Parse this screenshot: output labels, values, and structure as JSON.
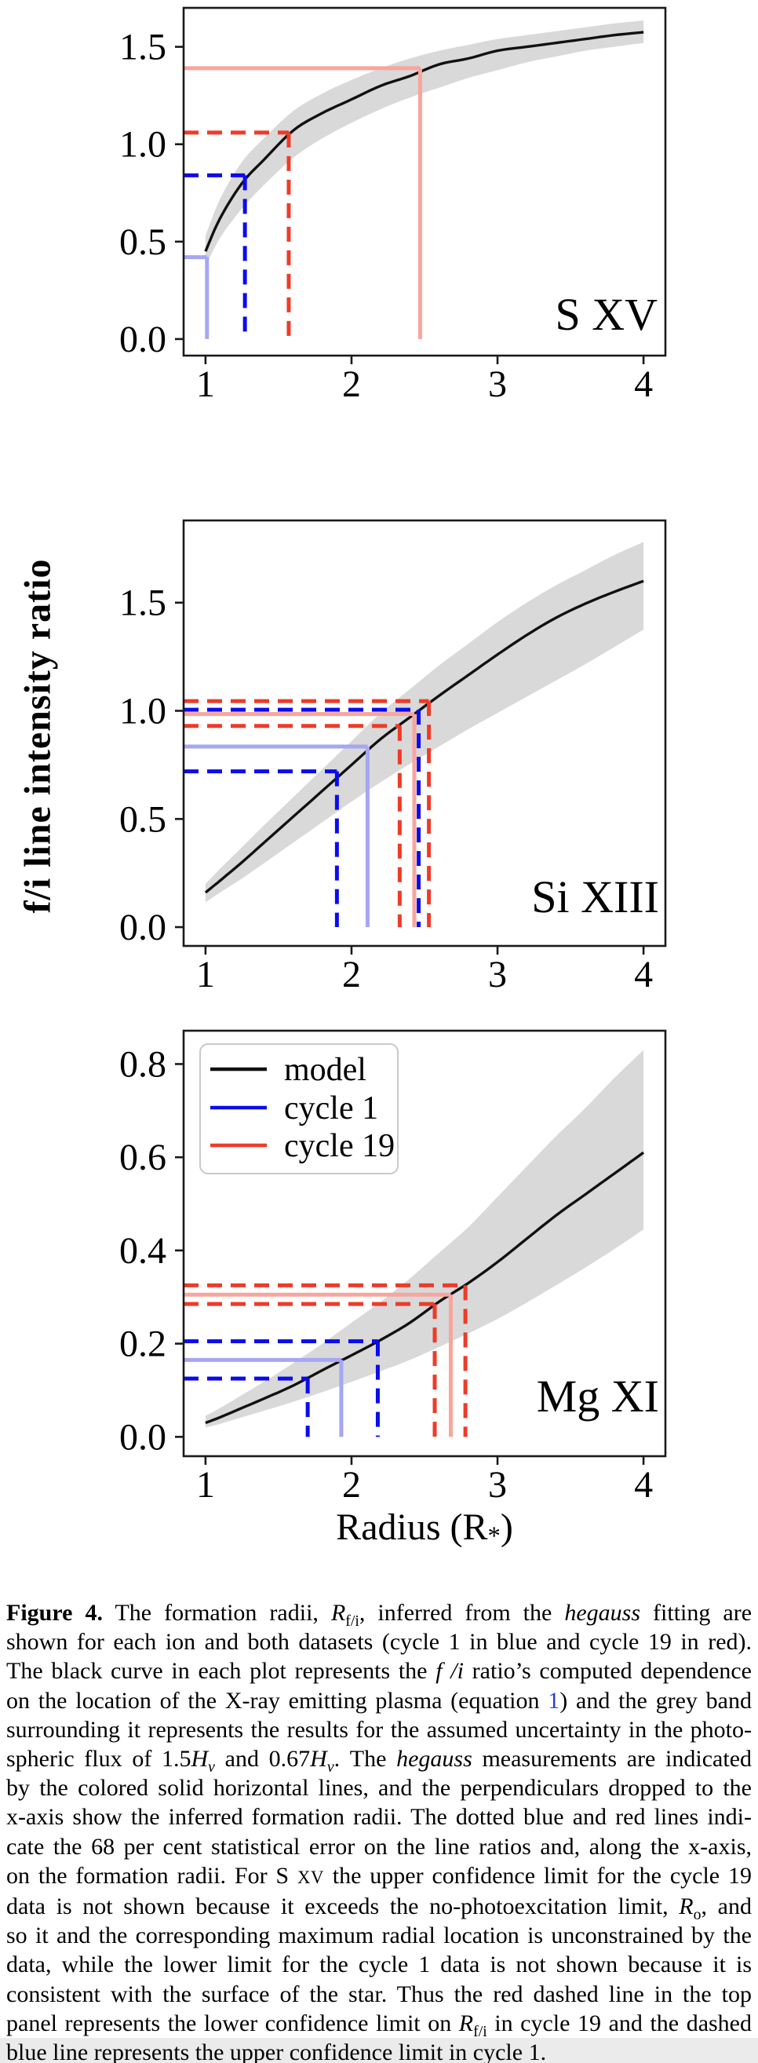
{
  "figure": {
    "y_axis_label": "f/i line intensity ratio",
    "x_axis_label": {
      "prefix": "Radius (R",
      "sub": "*",
      "suffix": ")"
    },
    "xlim": [
      0.85,
      4.15
    ],
    "x_ticks": [
      1,
      2,
      3,
      4
    ],
    "x_tick_labels": [
      "1",
      "2",
      "3",
      "4"
    ],
    "colors": {
      "model": "#111111",
      "band": "#d9d9d9",
      "cycle1_solid": "#a6a6f2",
      "cycle1_dashed": "#0b0bee",
      "cycle19_solid": "#f8a59d",
      "cycle19_dashed": "#ee3b28",
      "spine": "#1a1a1a",
      "legend_border": "#c9c9c9",
      "link": "#2545cc"
    },
    "legend": {
      "entries": [
        {
          "label": "model",
          "color_key": "model"
        },
        {
          "label": "cycle 1",
          "color_key": "cycle1_dashed"
        },
        {
          "label": "cycle 19",
          "color_key": "cycle19_dashed"
        }
      ]
    }
  },
  "chart_data": [
    {
      "type": "line",
      "ion_label": "S XV",
      "ylim": [
        -0.085,
        1.7
      ],
      "y_ticks": [
        0.0,
        0.5,
        1.0,
        1.5
      ],
      "y_tick_labels": [
        "0.0",
        "0.5",
        "1.0",
        "1.5"
      ],
      "x": [
        1.0,
        1.1,
        1.25,
        1.4,
        1.6,
        1.8,
        2.0,
        2.2,
        2.4,
        2.6,
        2.8,
        3.0,
        3.2,
        3.4,
        3.6,
        3.8,
        4.0
      ],
      "model": [
        0.45,
        0.62,
        0.8,
        0.92,
        1.07,
        1.16,
        1.23,
        1.3,
        1.35,
        1.41,
        1.44,
        1.48,
        1.5,
        1.52,
        1.54,
        1.56,
        1.575
      ],
      "band_upper": [
        0.53,
        0.72,
        0.91,
        1.03,
        1.17,
        1.26,
        1.33,
        1.39,
        1.44,
        1.48,
        1.51,
        1.54,
        1.56,
        1.58,
        1.6,
        1.62,
        1.635
      ],
      "band_lower": [
        0.375,
        0.52,
        0.67,
        0.79,
        0.93,
        1.03,
        1.11,
        1.18,
        1.24,
        1.29,
        1.34,
        1.38,
        1.42,
        1.45,
        1.48,
        1.5,
        1.52
      ],
      "measurements": [
        {
          "dataset": "cycle 19",
          "style": "solid",
          "ratio": 1.39,
          "radius": 2.47
        },
        {
          "dataset": "cycle 19",
          "style": "dashed",
          "ratio": 1.06,
          "radius": 1.57
        },
        {
          "dataset": "cycle 1",
          "style": "dashed",
          "ratio": 0.84,
          "radius": 1.27
        },
        {
          "dataset": "cycle 1",
          "style": "solid",
          "ratio": 0.42,
          "radius": 1.01
        }
      ],
      "has_legend": false
    },
    {
      "type": "line",
      "ion_label": "Si XIII",
      "ylim": [
        -0.087,
        1.88
      ],
      "y_ticks": [
        0.0,
        0.5,
        1.0,
        1.5
      ],
      "y_tick_labels": [
        "0.0",
        "0.5",
        "1.0",
        "1.5"
      ],
      "x": [
        1.0,
        1.1,
        1.25,
        1.4,
        1.6,
        1.8,
        2.0,
        2.2,
        2.4,
        2.6,
        2.8,
        3.0,
        3.2,
        3.4,
        3.6,
        3.8,
        4.0
      ],
      "model": [
        0.16,
        0.215,
        0.3,
        0.39,
        0.51,
        0.63,
        0.75,
        0.87,
        0.97,
        1.07,
        1.165,
        1.26,
        1.35,
        1.43,
        1.495,
        1.55,
        1.6
      ],
      "band_upper": [
        0.2,
        0.27,
        0.37,
        0.47,
        0.6,
        0.73,
        0.86,
        0.99,
        1.1,
        1.21,
        1.31,
        1.41,
        1.5,
        1.58,
        1.65,
        1.72,
        1.78
      ],
      "band_lower": [
        0.115,
        0.16,
        0.225,
        0.295,
        0.39,
        0.485,
        0.58,
        0.67,
        0.755,
        0.835,
        0.915,
        0.99,
        1.065,
        1.14,
        1.215,
        1.295,
        1.375
      ],
      "measurements": [
        {
          "dataset": "cycle 19",
          "style": "dashed",
          "ratio": 1.045,
          "radius": 2.53
        },
        {
          "dataset": "cycle 1",
          "style": "dashed",
          "ratio": 1.005,
          "radius": 2.46
        },
        {
          "dataset": "cycle 19",
          "style": "solid",
          "ratio": 0.985,
          "radius": 2.43
        },
        {
          "dataset": "cycle 19",
          "style": "dashed",
          "ratio": 0.93,
          "radius": 2.33
        },
        {
          "dataset": "cycle 1",
          "style": "solid",
          "ratio": 0.835,
          "radius": 2.11
        },
        {
          "dataset": "cycle 1",
          "style": "dashed",
          "ratio": 0.72,
          "radius": 1.9
        }
      ],
      "has_legend": false
    },
    {
      "type": "line",
      "ion_label": "Mg XI",
      "ylim": [
        -0.0415,
        0.8715
      ],
      "y_ticks": [
        0.0,
        0.2,
        0.4,
        0.6,
        0.8
      ],
      "y_tick_labels": [
        "0.0",
        "0.2",
        "0.4",
        "0.6",
        "0.8"
      ],
      "x": [
        1.0,
        1.1,
        1.25,
        1.4,
        1.6,
        1.8,
        2.0,
        2.2,
        2.4,
        2.6,
        2.8,
        3.0,
        3.2,
        3.4,
        3.6,
        3.8,
        4.0
      ],
      "model": [
        0.03,
        0.042,
        0.062,
        0.082,
        0.11,
        0.143,
        0.175,
        0.208,
        0.245,
        0.29,
        0.33,
        0.375,
        0.425,
        0.475,
        0.52,
        0.565,
        0.61
      ],
      "band_upper": [
        0.045,
        0.062,
        0.09,
        0.118,
        0.158,
        0.2,
        0.245,
        0.29,
        0.34,
        0.395,
        0.45,
        0.515,
        0.58,
        0.645,
        0.705,
        0.77,
        0.83
      ],
      "band_lower": [
        0.02,
        0.028,
        0.042,
        0.056,
        0.075,
        0.096,
        0.118,
        0.141,
        0.165,
        0.193,
        0.222,
        0.253,
        0.288,
        0.325,
        0.363,
        0.403,
        0.445
      ],
      "measurements": [
        {
          "dataset": "cycle 19",
          "style": "dashed",
          "ratio": 0.325,
          "radius": 2.78
        },
        {
          "dataset": "cycle 19",
          "style": "solid",
          "ratio": 0.305,
          "radius": 2.68
        },
        {
          "dataset": "cycle 19",
          "style": "dashed",
          "ratio": 0.285,
          "radius": 2.57
        },
        {
          "dataset": "cycle 1",
          "style": "dashed",
          "ratio": 0.205,
          "radius": 2.18
        },
        {
          "dataset": "cycle 1",
          "style": "solid",
          "ratio": 0.165,
          "radius": 1.93
        },
        {
          "dataset": "cycle 1",
          "style": "dashed",
          "ratio": 0.125,
          "radius": 1.7
        }
      ],
      "has_legend": true
    }
  ],
  "caption": {
    "lines": [
      [
        {
          "t": "Figure 4.",
          "s": "b"
        },
        {
          "t": " The formation radii, ",
          "s": "n"
        },
        {
          "t": "R",
          "s": "i"
        },
        {
          "t": "f/i",
          "s": "sub"
        },
        {
          "t": ", inferred from the ",
          "s": "n"
        },
        {
          "t": "hegauss",
          "s": "i"
        },
        {
          "t": " fitting are",
          "s": "n"
        }
      ],
      [
        {
          "t": "shown for each ion and both datasets (cycle 1 in blue and cycle 19 in red).",
          "s": "n"
        }
      ],
      [
        {
          "t": "The black curve in each plot represents the ",
          "s": "n"
        },
        {
          "t": "f /i",
          "s": "i"
        },
        {
          "t": " ratio’s computed dependence",
          "s": "n"
        }
      ],
      [
        {
          "t": "on the location of the X-ray emitting plasma (equation ",
          "s": "n"
        },
        {
          "t": "1",
          "s": "link"
        },
        {
          "t": ") and the grey band",
          "s": "n"
        }
      ],
      [
        {
          "t": "surrounding it represents the results for the assumed uncertainty in the photo-",
          "s": "n"
        }
      ],
      [
        {
          "t": "spheric flux of 1.5",
          "s": "n"
        },
        {
          "t": "H",
          "s": "i"
        },
        {
          "t": "ν",
          "s": "i sub"
        },
        {
          "t": " and 0.67",
          "s": "n"
        },
        {
          "t": "H",
          "s": "i"
        },
        {
          "t": "ν",
          "s": "i sub"
        },
        {
          "t": ". The ",
          "s": "n"
        },
        {
          "t": "hegauss",
          "s": "i"
        },
        {
          "t": " measurements are indicated",
          "s": "n"
        }
      ],
      [
        {
          "t": "by the colored solid horizontal lines, and the perpendiculars dropped to the",
          "s": "n"
        }
      ],
      [
        {
          "t": "x-axis show the inferred formation radii. The dotted blue and red lines indi-",
          "s": "n"
        }
      ],
      [
        {
          "t": "cate the 68 per cent statistical error on the line ratios and, along the x-axis,",
          "s": "n"
        }
      ],
      [
        {
          "t": "on the formation radii. For S ",
          "s": "n"
        },
        {
          "t": "xv",
          "s": "sc"
        },
        {
          "t": " the upper confidence limit for the cycle 19",
          "s": "n"
        }
      ],
      [
        {
          "t": "data is not shown because it exceeds the no-photoexcitation limit, ",
          "s": "n"
        },
        {
          "t": "R",
          "s": "i"
        },
        {
          "t": "o",
          "s": "sub"
        },
        {
          "t": ", and",
          "s": "n"
        }
      ],
      [
        {
          "t": "so it and the corresponding maximum radial location is unconstrained by the",
          "s": "n"
        }
      ],
      [
        {
          "t": "data, while the lower limit for the cycle 1 data is not shown because it is",
          "s": "n"
        }
      ],
      [
        {
          "t": "consistent with the surface of the star. Thus the red dashed line in the top",
          "s": "n"
        }
      ],
      [
        {
          "t": "panel represents the lower confidence limit on ",
          "s": "n"
        },
        {
          "t": "R",
          "s": "i"
        },
        {
          "t": "f/i",
          "s": "sub"
        },
        {
          "t": " in cycle 19 and the dashed",
          "s": "n"
        }
      ],
      [
        {
          "t": "blue line represents the upper confidence limit in cycle 1.",
          "s": "n"
        }
      ]
    ]
  }
}
